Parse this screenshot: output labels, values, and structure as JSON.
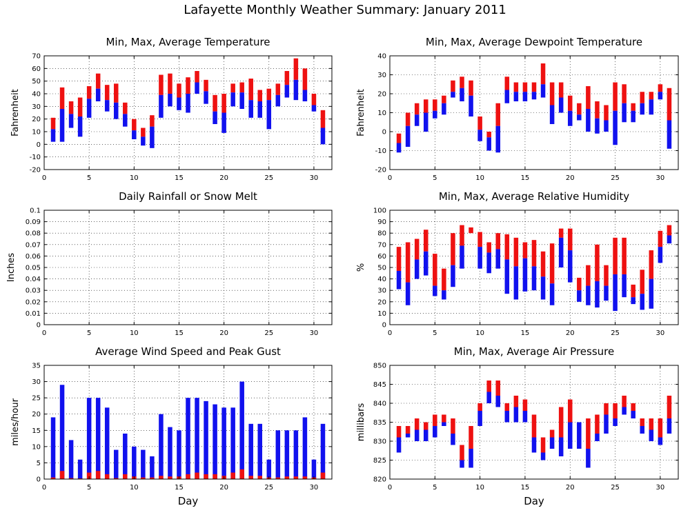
{
  "page": {
    "title": "Lafayette Monthly Weather Summary: January 2011"
  },
  "colors": {
    "max_part": "#ee1111",
    "min_part": "#1111ee",
    "frame": "#000000",
    "grid": "#000000"
  },
  "chart_data": [
    {
      "id": "temp",
      "type": "bar",
      "title": "Min, Max, Average Temperature",
      "xlabel": "",
      "ylabel": "Fahrenheit",
      "xlim": [
        0,
        32
      ],
      "ylim": [
        -20,
        70
      ],
      "x_ticks": [
        0,
        5,
        10,
        15,
        20,
        25,
        30
      ],
      "y_ticks": [
        -20,
        -10,
        0,
        10,
        20,
        30,
        40,
        50,
        60,
        70
      ],
      "y_tick_labels": [
        "-20",
        "-10",
        "0",
        "10",
        "20",
        "30",
        "40",
        "50",
        "60",
        "70"
      ],
      "grid": true,
      "days": [
        1,
        2,
        3,
        4,
        5,
        6,
        7,
        8,
        9,
        10,
        11,
        12,
        13,
        14,
        15,
        16,
        17,
        18,
        19,
        20,
        21,
        22,
        23,
        24,
        25,
        26,
        27,
        28,
        29,
        30,
        31
      ],
      "min": [
        2,
        2,
        13,
        6,
        21,
        34,
        26,
        20,
        14,
        4,
        -1,
        -3,
        21,
        30,
        27,
        25,
        40,
        32,
        16,
        9,
        30,
        28,
        21,
        21,
        12,
        30,
        37,
        35,
        34,
        26,
        0
      ],
      "avg": [
        12,
        28,
        24,
        22,
        36,
        44,
        35,
        33,
        24,
        11,
        6,
        14,
        39,
        40,
        37,
        40,
        49,
        42,
        26,
        25,
        41,
        41,
        35,
        34,
        35,
        39,
        47,
        51,
        43,
        31,
        13
      ],
      "max": [
        21,
        45,
        34,
        37,
        46,
        56,
        47,
        48,
        33,
        20,
        13,
        23,
        55,
        56,
        48,
        53,
        58,
        51,
        39,
        40,
        48,
        49,
        52,
        43,
        44,
        48,
        58,
        68,
        60,
        40,
        27
      ]
    },
    {
      "id": "dew",
      "type": "bar",
      "title": "Min, Max, Average Dewpoint Temperature",
      "xlabel": "",
      "ylabel": "Fahrenheit",
      "xlim": [
        0,
        32
      ],
      "ylim": [
        -20,
        40
      ],
      "x_ticks": [
        0,
        5,
        10,
        15,
        20,
        25,
        30
      ],
      "y_ticks": [
        -20,
        -10,
        0,
        10,
        20,
        30,
        40
      ],
      "y_tick_labels": [
        "-20",
        "-10",
        "0",
        "10",
        "20",
        "30",
        "40"
      ],
      "grid": true,
      "days": [
        1,
        2,
        3,
        4,
        5,
        6,
        7,
        8,
        9,
        10,
        11,
        12,
        13,
        14,
        15,
        16,
        17,
        18,
        19,
        20,
        21,
        22,
        23,
        24,
        25,
        26,
        27,
        28,
        29,
        30,
        31
      ],
      "min": [
        -11,
        -8,
        3,
        0,
        7,
        9,
        18,
        16,
        8,
        -5,
        -10,
        -11,
        15,
        16,
        16,
        17,
        18,
        4,
        10,
        3,
        6,
        0,
        -1,
        0,
        -7,
        5,
        5,
        9,
        9,
        17,
        -9
      ],
      "avg": [
        -6,
        3,
        9,
        10,
        11,
        15,
        21,
        23,
        19,
        1,
        -3,
        3,
        22,
        21,
        21,
        21,
        25,
        14,
        18,
        11,
        9,
        12,
        7,
        6,
        11,
        15,
        11,
        15,
        17,
        21,
        6
      ],
      "max": [
        -1,
        10,
        15,
        17,
        17,
        19,
        27,
        29,
        27,
        8,
        0,
        15,
        29,
        26,
        26,
        26,
        36,
        26,
        26,
        19,
        15,
        24,
        16,
        14,
        26,
        25,
        15,
        21,
        21,
        25,
        23
      ]
    },
    {
      "id": "rain",
      "type": "bar",
      "title": "Daily Rainfall or Snow Melt",
      "xlabel": "",
      "ylabel": "Inches",
      "xlim": [
        0,
        32
      ],
      "ylim": [
        0,
        0.1
      ],
      "x_ticks": [
        0,
        5,
        10,
        15,
        20,
        25,
        30
      ],
      "y_ticks": [
        0,
        0.01,
        0.02,
        0.03,
        0.04,
        0.05,
        0.06,
        0.07,
        0.08,
        0.09,
        0.1
      ],
      "y_tick_labels": [
        "0",
        "0.01",
        "0.02",
        "0.03",
        "0.04",
        "0.05",
        "0.06",
        "0.07",
        "0.08",
        "0.09",
        "0.1"
      ],
      "grid": true,
      "days": [],
      "values": []
    },
    {
      "id": "rh",
      "type": "bar",
      "title": "Min, Max, Average Relative Humidity",
      "xlabel": "",
      "ylabel": "%",
      "xlim": [
        0,
        32
      ],
      "ylim": [
        0,
        100
      ],
      "x_ticks": [
        0,
        5,
        10,
        15,
        20,
        25,
        30
      ],
      "y_ticks": [
        0,
        10,
        20,
        30,
        40,
        50,
        60,
        70,
        80,
        90,
        100
      ],
      "y_tick_labels": [
        "0",
        "10",
        "20",
        "30",
        "40",
        "50",
        "60",
        "70",
        "80",
        "90",
        "100"
      ],
      "grid": true,
      "days": [
        1,
        2,
        3,
        4,
        5,
        6,
        7,
        8,
        9,
        10,
        11,
        12,
        13,
        14,
        15,
        16,
        17,
        18,
        19,
        20,
        21,
        22,
        23,
        24,
        25,
        26,
        27,
        28,
        29,
        30,
        31
      ],
      "min": [
        31,
        17,
        40,
        43,
        25,
        22,
        33,
        49,
        80,
        49,
        45,
        49,
        27,
        22,
        29,
        30,
        22,
        17,
        50,
        37,
        20,
        17,
        15,
        21,
        12,
        24,
        18,
        13,
        14,
        54,
        71
      ],
      "avg": [
        47,
        37,
        57,
        64,
        34,
        30,
        52,
        69,
        80,
        68,
        63,
        66,
        57,
        51,
        58,
        51,
        42,
        36,
        76,
        65,
        30,
        34,
        38,
        34,
        44,
        44,
        24,
        27,
        40,
        68,
        78
      ],
      "max": [
        68,
        72,
        75,
        83,
        62,
        49,
        80,
        87,
        85,
        81,
        72,
        80,
        79,
        76,
        72,
        74,
        64,
        71,
        84,
        84,
        41,
        52,
        70,
        52,
        76,
        76,
        35,
        48,
        65,
        82,
        87
      ]
    },
    {
      "id": "wind",
      "type": "bar",
      "title": "Average Wind Speed and Peak Gust",
      "xlabel": "Day",
      "ylabel": "miles/hour",
      "xlim": [
        0,
        32
      ],
      "ylim": [
        0,
        35
      ],
      "x_ticks": [
        0,
        5,
        10,
        15,
        20,
        25,
        30
      ],
      "y_ticks": [
        0,
        5,
        10,
        15,
        20,
        25,
        30,
        35
      ],
      "y_tick_labels": [
        "0",
        "5",
        "10",
        "15",
        "20",
        "25",
        "30",
        "35"
      ],
      "grid": true,
      "days": [
        1,
        2,
        3,
        4,
        5,
        6,
        7,
        8,
        9,
        10,
        11,
        12,
        13,
        14,
        15,
        16,
        17,
        18,
        19,
        20,
        21,
        22,
        23,
        24,
        25,
        26,
        27,
        28,
        29,
        30,
        31
      ],
      "avg": [
        0.5,
        2.5,
        0.3,
        0.2,
        2,
        2.5,
        1.5,
        0.3,
        1.5,
        0.8,
        0.5,
        0.5,
        1,
        0.8,
        0.8,
        1.5,
        2,
        1.5,
        1.5,
        1,
        2,
        3,
        1,
        1,
        0.5,
        0.5,
        0.8,
        0.8,
        0.8,
        0.5,
        2
      ],
      "gust": [
        19,
        29,
        12,
        6,
        25,
        25,
        22,
        9,
        14,
        10,
        9,
        7,
        20,
        16,
        15,
        25,
        25,
        24,
        23,
        22,
        22,
        30,
        17,
        17,
        6,
        15,
        15,
        15,
        19,
        6,
        17
      ]
    },
    {
      "id": "pressure",
      "type": "bar",
      "title": "Min, Max, Average Air Pressure",
      "xlabel": "Day",
      "ylabel": "millibars",
      "xlim": [
        0,
        32
      ],
      "ylim": [
        820,
        850
      ],
      "x_ticks": [
        0,
        5,
        10,
        15,
        20,
        25,
        30
      ],
      "y_ticks": [
        820,
        825,
        830,
        835,
        840,
        845,
        850
      ],
      "y_tick_labels": [
        "820",
        "825",
        "830",
        "835",
        "840",
        "845",
        "850"
      ],
      "grid": true,
      "days": [
        1,
        2,
        3,
        4,
        5,
        6,
        7,
        8,
        9,
        10,
        11,
        12,
        13,
        14,
        15,
        16,
        17,
        18,
        19,
        20,
        21,
        22,
        23,
        24,
        25,
        26,
        27,
        28,
        29,
        30,
        31
      ],
      "min": [
        827,
        831,
        830,
        830,
        831,
        834,
        829,
        823,
        823,
        834,
        840,
        839,
        835,
        835,
        835,
        827,
        825,
        828,
        826,
        828,
        828,
        823,
        830,
        832,
        834,
        837,
        836,
        832,
        830,
        829,
        832
      ],
      "avg": [
        831,
        832,
        833,
        833,
        834,
        835,
        832,
        825,
        828,
        838,
        843,
        842,
        838,
        839,
        838,
        831,
        827,
        831,
        831,
        835,
        835,
        828,
        832,
        837,
        836,
        839,
        838,
        834,
        833,
        831,
        836
      ],
      "max": [
        834,
        834,
        836,
        835,
        837,
        837,
        836,
        829,
        834,
        840,
        846,
        846,
        840,
        842,
        841,
        837,
        831,
        833,
        839,
        841,
        835,
        836,
        837,
        840,
        840,
        842,
        840,
        836,
        836,
        836,
        842
      ]
    }
  ]
}
